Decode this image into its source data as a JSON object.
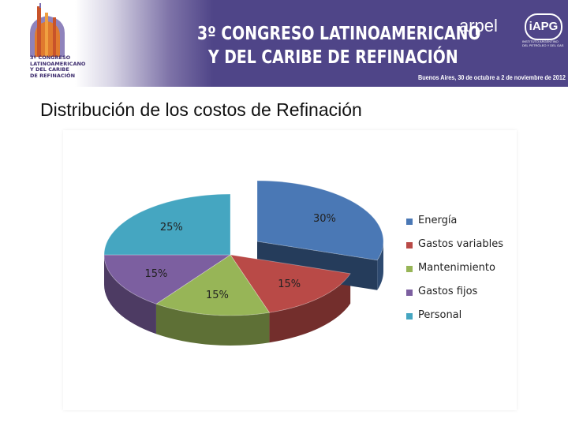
{
  "header": {
    "logo_lines": [
      "3º CONGRESO",
      "LATINOAMERICANO",
      "Y DEL CARIBE",
      "DE REFINACIÓN"
    ],
    "title_line1": "3º CONGRESO LATINOAMERICANO",
    "title_line2": "Y DEL CARIBE DE REFINACIÓN",
    "arpel_logo": "arpel",
    "iapg_logo": "iAPG",
    "iapg_subtitle": "INSTITUTO ARGENTINO DEL PETRÓLEO Y DEL GAS",
    "date_line": "Buenos Aires, 30 de octubre a 2 de noviembre de 2012",
    "banner_color": "#4f4588"
  },
  "slide": {
    "title": "Distribución de los costos de Refinación"
  },
  "chart_data": {
    "type": "pie",
    "style": "3d-exploded",
    "legend_position": "right",
    "categories": [
      "Energía",
      "Gastos variables",
      "Mantenimiento",
      "Gastos fijos",
      "Personal"
    ],
    "values": [
      30,
      15,
      15,
      15,
      25
    ],
    "data_labels": [
      "30%",
      "15%",
      "15%",
      "15%",
      "25%"
    ],
    "colors": [
      "#4a78b5",
      "#b94a47",
      "#97b557",
      "#7c5fa0",
      "#45a6c1"
    ]
  }
}
